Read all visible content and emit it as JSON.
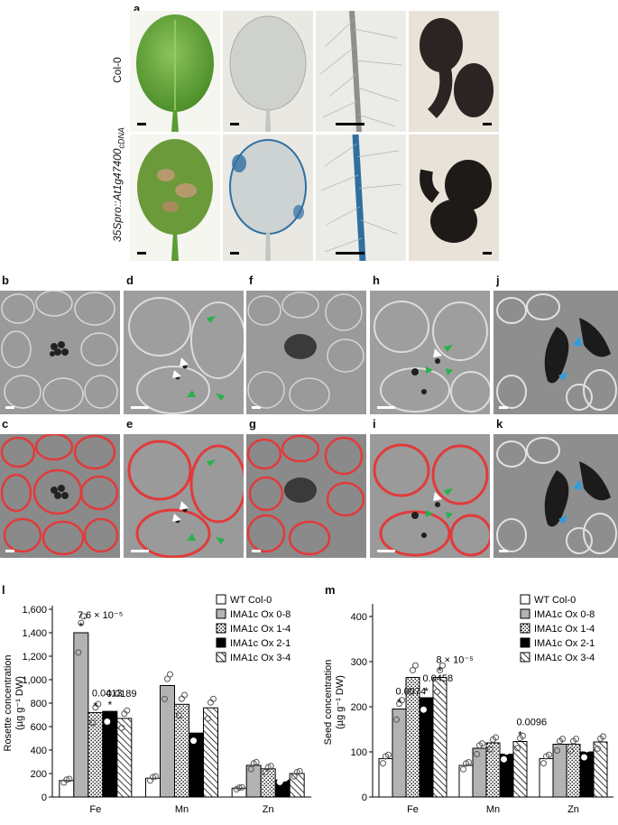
{
  "panel_labels": {
    "a": "a",
    "b": "b",
    "c": "c",
    "d": "d",
    "e": "e",
    "f": "f",
    "g": "g",
    "h": "h",
    "i": "i",
    "j": "j",
    "k": "k",
    "l": "l",
    "m": "m"
  },
  "row_labels": {
    "top": "Col-0",
    "bottom_main": "35Spro::At1g47400",
    "bottom_sub": "cDNA"
  },
  "colors": {
    "wt": "#ffffff",
    "ox08": "#b3b3b3",
    "ox14": "#ffffff",
    "ox21": "#000000",
    "ox34": "#ffffff",
    "marker": "#ffffff",
    "stain": "#2f6fa0",
    "fluor": "#e83a3a"
  },
  "legend": [
    "WT Col-0",
    "IMA1c Ox 0-8",
    "IMA1c Ox 1-4",
    "IMA1c Ox 2-1",
    "IMA1c Ox 3-4"
  ],
  "chart_data": [
    {
      "type": "bar",
      "panel": "l",
      "categories": [
        "Fe",
        "Mn",
        "Zn"
      ],
      "ylabel_line1": "Rosette concentration",
      "ylabel_line2": "(µg g⁻¹ DW)",
      "ylim": [
        0,
        1600
      ],
      "yticks": [
        "0",
        "200",
        "400",
        "600",
        "800",
        "1,000",
        "1,200",
        "1,400",
        "1,600"
      ],
      "series": [
        {
          "name": "WT Col-0",
          "values": [
            140,
            160,
            75
          ]
        },
        {
          "name": "IMA1c Ox 0-8",
          "values": [
            1400,
            950,
            270
          ]
        },
        {
          "name": "IMA1c Ox 1-4",
          "values": [
            720,
            790,
            240
          ]
        },
        {
          "name": "IMA1c Ox 2-1",
          "values": [
            730,
            545,
            145
          ]
        },
        {
          "name": "IMA1c Ox 3-4",
          "values": [
            670,
            760,
            200
          ]
        }
      ],
      "annotations": [
        {
          "text": "7.6 × 10⁻⁵",
          "star": "*",
          "category": 0,
          "series": 1
        },
        {
          "text": "0.0413",
          "star": "*",
          "category": 0,
          "series": 2
        },
        {
          "text": "0.0189",
          "star": "*",
          "category": 0,
          "series": 3
        }
      ]
    },
    {
      "type": "bar",
      "panel": "m",
      "categories": [
        "Fe",
        "Mn",
        "Zn"
      ],
      "ylabel_line1": "Seed concentration",
      "ylabel_line2": "(µg g⁻¹ DW)",
      "ylim": [
        0,
        420
      ],
      "yticks": [
        "0",
        "100",
        "200",
        "300",
        "400"
      ],
      "series": [
        {
          "name": "WT Col-0",
          "values": [
            85,
            70,
            85
          ]
        },
        {
          "name": "IMA1c Ox 0-8",
          "values": [
            195,
            108,
            117
          ]
        },
        {
          "name": "IMA1c Ox 1-4",
          "values": [
            265,
            120,
            117
          ]
        },
        {
          "name": "IMA1c Ox 2-1",
          "values": [
            220,
            95,
            100
          ]
        },
        {
          "name": "IMA1c Ox 3-4",
          "values": [
            265,
            123,
            122
          ]
        }
      ],
      "annotations": [
        {
          "text": "0.0074",
          "star": "*",
          "category": 0,
          "series": 1
        },
        {
          "text": "0.0458",
          "star": "*",
          "category": 0,
          "series": 3
        },
        {
          "text": "8 × 10⁻⁵",
          "star": "*",
          "category": 0,
          "series": 4
        },
        {
          "text": "0.0096",
          "star": "*",
          "category": 1,
          "series": 4
        }
      ]
    }
  ]
}
